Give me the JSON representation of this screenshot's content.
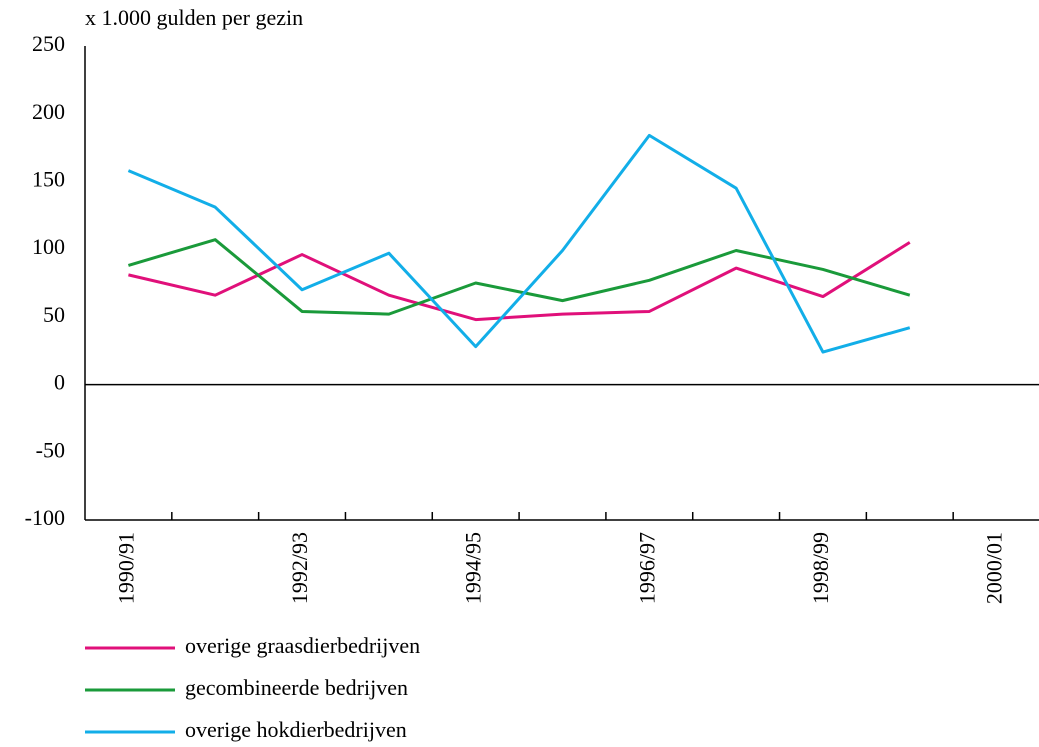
{
  "chart_data": {
    "type": "line",
    "y_label": "x 1.000 gulden per gezin",
    "categories": [
      "1990/91",
      null,
      "1992/93",
      null,
      "1994/95",
      null,
      "1996/97",
      null,
      "1998/99",
      null,
      "2000/01"
    ],
    "series": [
      {
        "name": "overige graasdierbedrijven",
        "color": "#e0107a",
        "values": [
          81,
          66,
          96,
          66,
          48,
          52,
          54,
          86,
          65,
          105,
          null
        ]
      },
      {
        "name": "gecombineerde bedrijven",
        "color": "#1a9a3a",
        "values": [
          88,
          107,
          54,
          52,
          75,
          62,
          77,
          99,
          85,
          66,
          null
        ]
      },
      {
        "name": "overige hokdierbedrijven",
        "color": "#12aee8",
        "values": [
          158,
          131,
          70,
          97,
          28,
          99,
          184,
          145,
          24,
          42,
          null
        ]
      }
    ],
    "ylim": [
      -100,
      250
    ],
    "yticks": [
      -100,
      -50,
      0,
      50,
      100,
      150,
      200,
      250
    ]
  }
}
